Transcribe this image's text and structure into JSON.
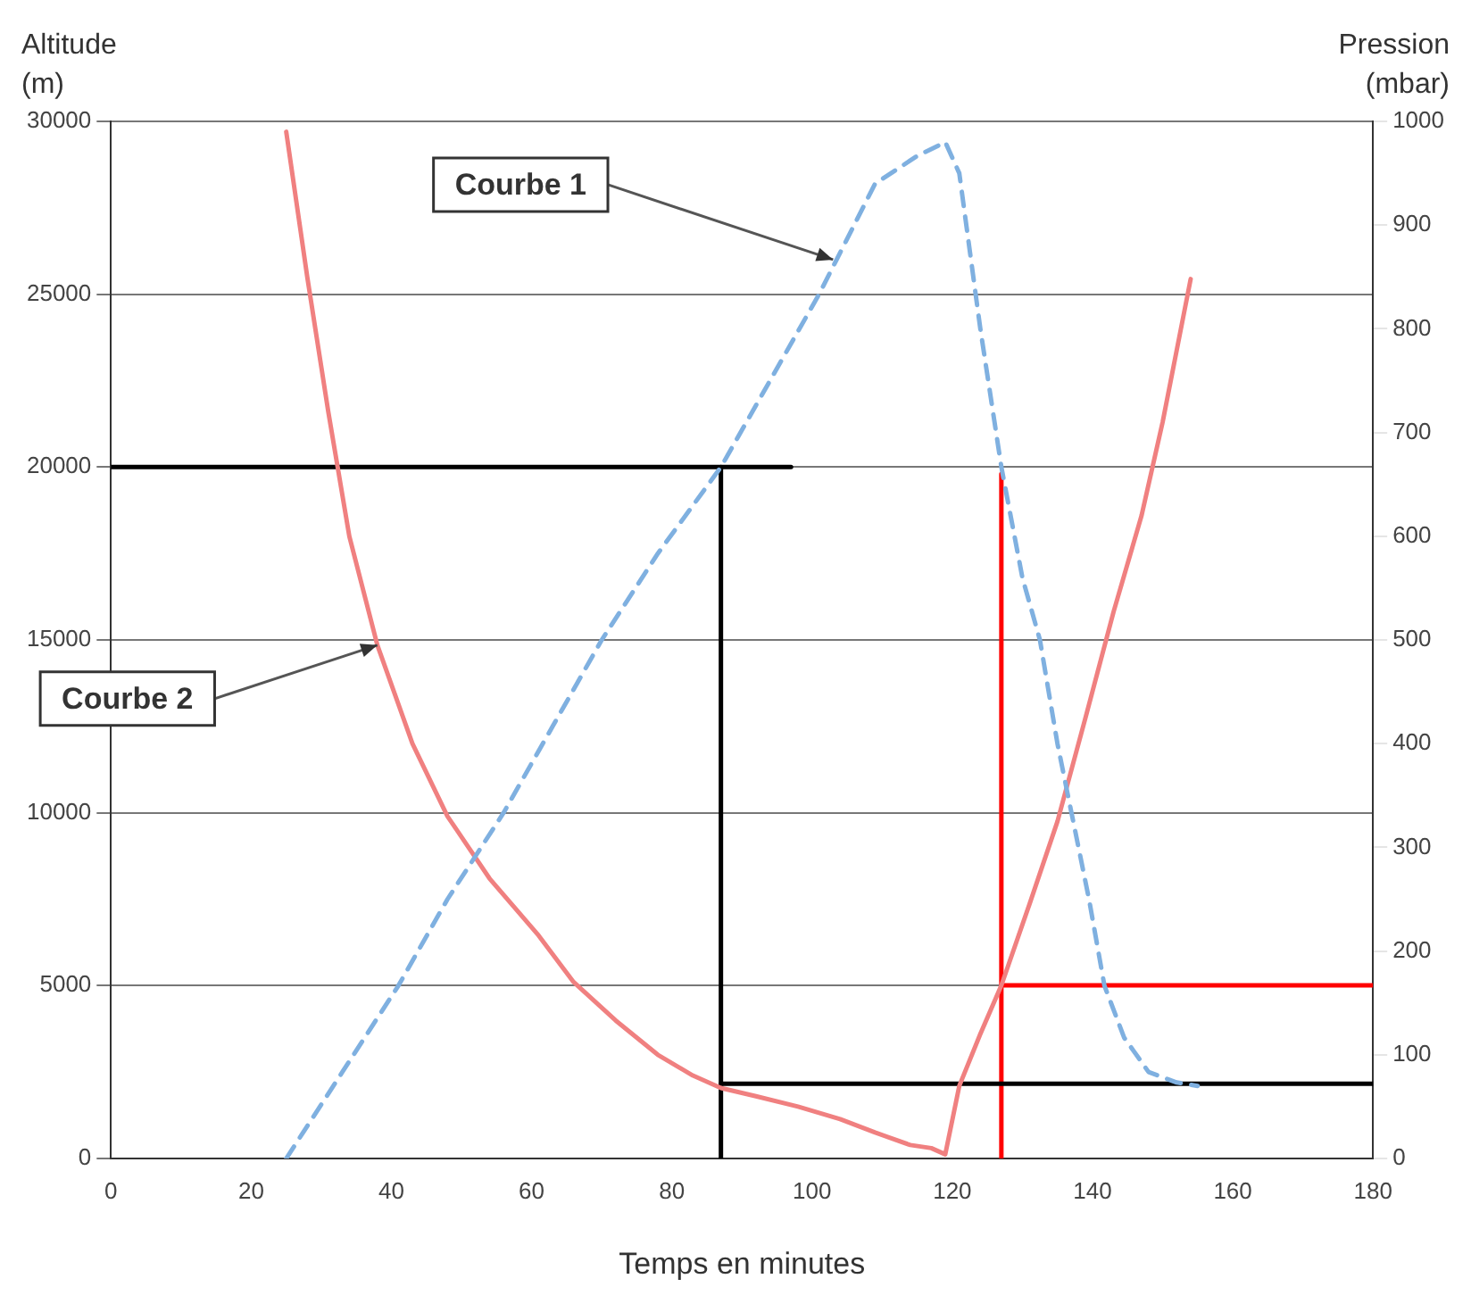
{
  "chart_data": {
    "type": "line",
    "xlabel": "Temps en minutes",
    "ylabel": "Altitude (m)",
    "y2label": "Pression (mbar)",
    "xlim": [
      0,
      180
    ],
    "xticks": [
      0,
      20,
      40,
      60,
      80,
      100,
      120,
      140,
      160,
      180
    ],
    "ylim": [
      0,
      30000
    ],
    "yticks": [
      0,
      5000,
      10000,
      15000,
      20000,
      25000,
      30000
    ],
    "y2lim": [
      0,
      1000
    ],
    "y2ticks": [
      0,
      100,
      200,
      300,
      400,
      500,
      600,
      700,
      800,
      900,
      1000
    ],
    "grid": "y",
    "legend": false,
    "marker": "none",
    "series": [
      {
        "color": "#7fb0e0",
        "line_style": "dashed",
        "axis": "y",
        "x": [
          25,
          33,
          41,
          48,
          56,
          63,
          70,
          78,
          87,
          94,
          101,
          109,
          115,
          119,
          121,
          124,
          127,
          130,
          132.5,
          135,
          137,
          139.5,
          141.7,
          144.5,
          148,
          152,
          155
        ],
        "values": [
          0,
          2500,
          5000,
          7500,
          10000,
          12500,
          15000,
          17500,
          20000,
          22500,
          25000,
          28200,
          29000,
          29400,
          28500,
          24000,
          20000,
          16800,
          15000,
          12000,
          10000,
          7500,
          5000,
          3500,
          2500,
          2200,
          2100
        ]
      },
      {
        "color": "#f08080",
        "line_style": "solid",
        "axis": "y2",
        "x": [
          25,
          28,
          31,
          34,
          38,
          43,
          48,
          54,
          61,
          66,
          72,
          78,
          83,
          87,
          92,
          98,
          104,
          109,
          114,
          117,
          119,
          121,
          124,
          127,
          131,
          135,
          139,
          143,
          147,
          150,
          154
        ],
        "values": [
          990,
          850,
          720,
          600,
          495,
          400,
          330,
          270,
          215,
          170,
          133,
          100,
          80,
          68,
          60,
          50,
          38,
          25,
          13,
          10,
          4,
          70,
          120,
          167,
          245,
          325,
          425,
          527,
          620,
          710,
          848
        ]
      },
      {
        "color": "#000000",
        "line_style": "solid",
        "axis": "y",
        "x": [
          0,
          97
        ],
        "values": [
          20000,
          20000
        ]
      },
      {
        "color": "#000000",
        "line_style": "solid",
        "axis": "y",
        "x": [
          87,
          87
        ],
        "values": [
          20000,
          0
        ]
      },
      {
        "color": "#000000",
        "line_style": "solid",
        "axis": "y2",
        "x": [
          87,
          180
        ],
        "values": [
          72,
          72
        ]
      },
      {
        "color": "#ff0000",
        "line_style": "solid",
        "axis": "y2",
        "x": [
          127,
          127
        ],
        "values": [
          660,
          0
        ]
      },
      {
        "color": "#ff0000",
        "line_style": "solid",
        "axis": "y2",
        "x": [
          127,
          180
        ],
        "values": [
          167,
          167
        ]
      }
    ],
    "annotations": [
      {
        "text": "Courbe 1",
        "x": 103,
        "y": 26000
      },
      {
        "text": "Courbe 2",
        "x": 38,
        "y": 14850
      }
    ]
  }
}
